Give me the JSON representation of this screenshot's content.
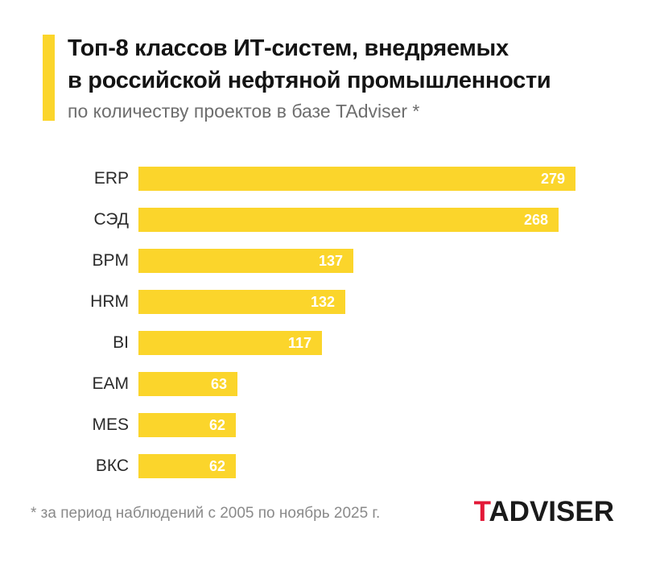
{
  "header": {
    "title_line1": "Топ-8 классов ИТ-систем, внедряемых",
    "title_line2": "в российской нефтяной промышленности",
    "subtitle": "по количеству проектов в базе TAdviser *"
  },
  "chart_data": {
    "type": "bar",
    "orientation": "horizontal",
    "title": "Топ-8 классов ИТ-систем, внедряемых в российской нефтяной промышленности",
    "subtitle": "по количеству проектов в базе TAdviser *",
    "categories": [
      "ERP",
      "СЭД",
      "BPM",
      "HRM",
      "BI",
      "EAM",
      "MES",
      "ВКС"
    ],
    "values": [
      279,
      268,
      137,
      132,
      117,
      63,
      62,
      62
    ],
    "xlim": [
      0,
      279
    ],
    "value_labels_inside_bars": true,
    "grid": false,
    "legend": false
  },
  "footer": {
    "note": "* за период наблюдений с 2005 по ноябрь 2025 г.",
    "logo_t": "T",
    "logo_rest": "ADVISER"
  },
  "colors": {
    "bar_yellow": "#FBD52B",
    "accent_yellow": "#FBD52B",
    "logo_red": "#E31837",
    "title_text": "#141414",
    "subtitle_text": "#6E6E6E",
    "category_text": "#2B2B2B",
    "value_text": "#FFFFFF",
    "note_text": "#8A8A8A",
    "background": "#FFFFFF"
  }
}
